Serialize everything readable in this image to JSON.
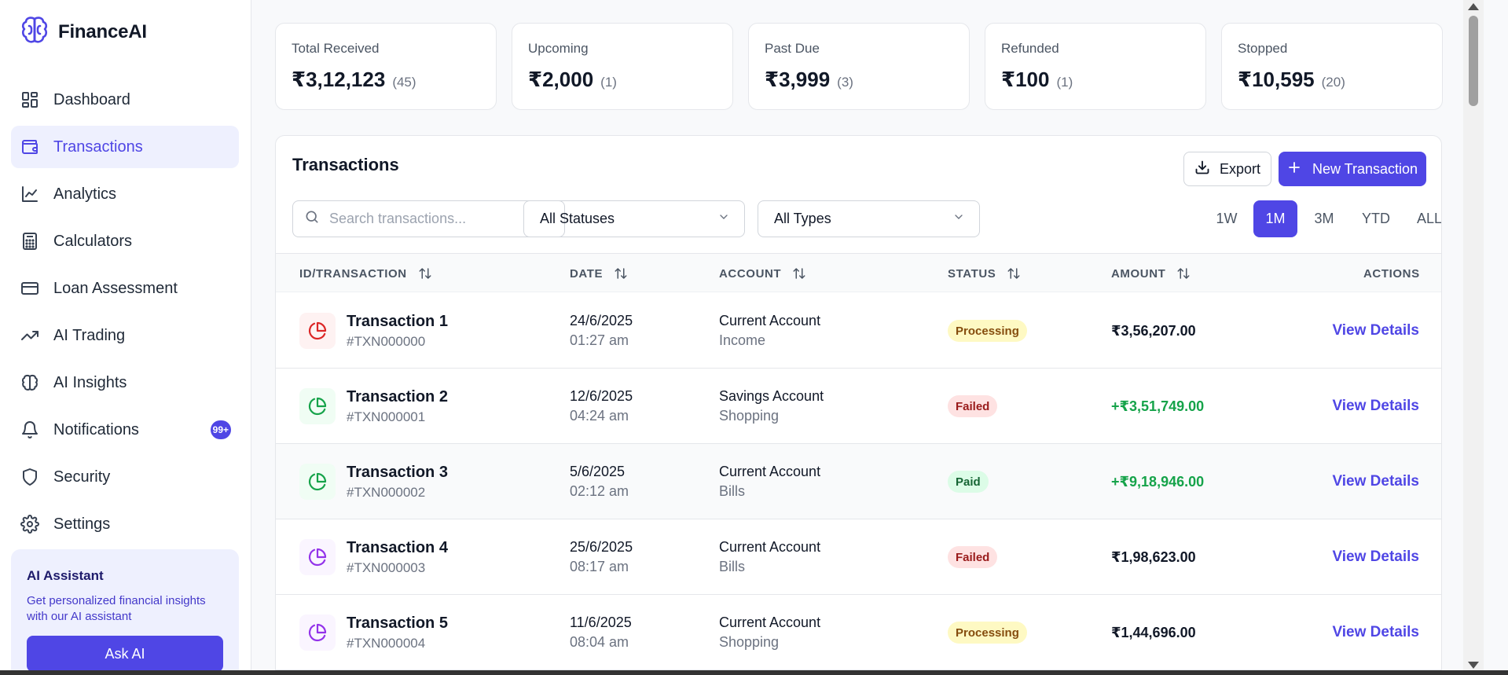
{
  "brand": {
    "name": "FinanceAI",
    "logo_icon": "brain-icon"
  },
  "sidebar": {
    "items": [
      {
        "label": "Dashboard",
        "icon": "dashboard-grid-icon",
        "active": false
      },
      {
        "label": "Transactions",
        "icon": "wallet-icon",
        "active": true
      },
      {
        "label": "Analytics",
        "icon": "line-chart-icon",
        "active": false
      },
      {
        "label": "Calculators",
        "icon": "calculator-icon",
        "active": false
      },
      {
        "label": "Loan Assessment",
        "icon": "credit-card-icon",
        "active": false
      },
      {
        "label": "AI Trading",
        "icon": "trending-up-icon",
        "active": false
      },
      {
        "label": "AI Insights",
        "icon": "brain-icon",
        "active": false
      },
      {
        "label": "Notifications",
        "icon": "bell-icon",
        "active": false,
        "badge": "99+"
      },
      {
        "label": "Security",
        "icon": "shield-icon",
        "active": false
      },
      {
        "label": "Settings",
        "icon": "gear-icon",
        "active": false
      }
    ],
    "assistant": {
      "title": "AI Assistant",
      "description": "Get personalized financial insights with our AI assistant",
      "button": "Ask AI"
    }
  },
  "summary": [
    {
      "label": "Total Received",
      "amount": "₹3,12,123",
      "count": "(45)"
    },
    {
      "label": "Upcoming",
      "amount": "₹2,000",
      "count": "(1)"
    },
    {
      "label": "Past Due",
      "amount": "₹3,999",
      "count": "(3)"
    },
    {
      "label": "Refunded",
      "amount": "₹100",
      "count": "(1)"
    },
    {
      "label": "Stopped",
      "amount": "₹10,595",
      "count": "(20)"
    }
  ],
  "transactions_panel": {
    "title": "Transactions",
    "export_label": "Export",
    "new_label": "New Transaction",
    "search_placeholder": "Search transactions...",
    "search_value": "",
    "status_filter": "All Statuses",
    "type_filter": "All Types",
    "ranges": [
      "1W",
      "1M",
      "3M",
      "YTD",
      "ALL"
    ],
    "active_range": "1M",
    "columns": {
      "id": "ID/TRANSACTION",
      "date": "DATE",
      "account": "ACCOUNT",
      "status": "STATUS",
      "amount": "AMOUNT",
      "actions": "ACTIONS"
    },
    "rows": [
      {
        "name": "Transaction 1",
        "id": "#TXN000000",
        "date": "24/6/2025",
        "time": "01:27 am",
        "account": "Current Account",
        "category": "Income",
        "status": "Processing",
        "amount": "₹3,56,207.00",
        "amount_color": "#111827",
        "icon_color": "#dc2626",
        "icon_bg": "#fef2f2",
        "action": "View Details"
      },
      {
        "name": "Transaction 2",
        "id": "#TXN000001",
        "date": "12/6/2025",
        "time": "04:24 am",
        "account": "Savings Account",
        "category": "Shopping",
        "status": "Failed",
        "amount": "+₹3,51,749.00",
        "amount_color": "#16a34a",
        "icon_color": "#16a34a",
        "icon_bg": "#f0fdf4",
        "action": "View Details"
      },
      {
        "name": "Transaction 3",
        "id": "#TXN000002",
        "date": "5/6/2025",
        "time": "02:12 am",
        "account": "Current Account",
        "category": "Bills",
        "status": "Paid",
        "amount": "+₹9,18,946.00",
        "amount_color": "#16a34a",
        "icon_color": "#16a34a",
        "icon_bg": "#f0fdf4",
        "action": "View Details"
      },
      {
        "name": "Transaction 4",
        "id": "#TXN000003",
        "date": "25/6/2025",
        "time": "08:17 am",
        "account": "Current Account",
        "category": "Bills",
        "status": "Failed",
        "amount": "₹1,98,623.00",
        "amount_color": "#111827",
        "icon_color": "#9333ea",
        "icon_bg": "#faf5ff",
        "action": "View Details"
      },
      {
        "name": "Transaction 5",
        "id": "#TXN000004",
        "date": "11/6/2025",
        "time": "08:04 am",
        "account": "Current Account",
        "category": "Shopping",
        "status": "Processing",
        "amount": "₹1,44,696.00",
        "amount_color": "#111827",
        "icon_color": "#9333ea",
        "icon_bg": "#faf5ff",
        "action": "View Details"
      }
    ]
  },
  "status_styles": {
    "Processing": {
      "bg": "#fef9c3",
      "fg": "#854d0e"
    },
    "Failed": {
      "bg": "#fee2e2",
      "fg": "#991b1b"
    },
    "Paid": {
      "bg": "#dcfce7",
      "fg": "#166534"
    }
  },
  "colors": {
    "accent": "#4f46e5",
    "accent_soft": "#eef0fe"
  }
}
